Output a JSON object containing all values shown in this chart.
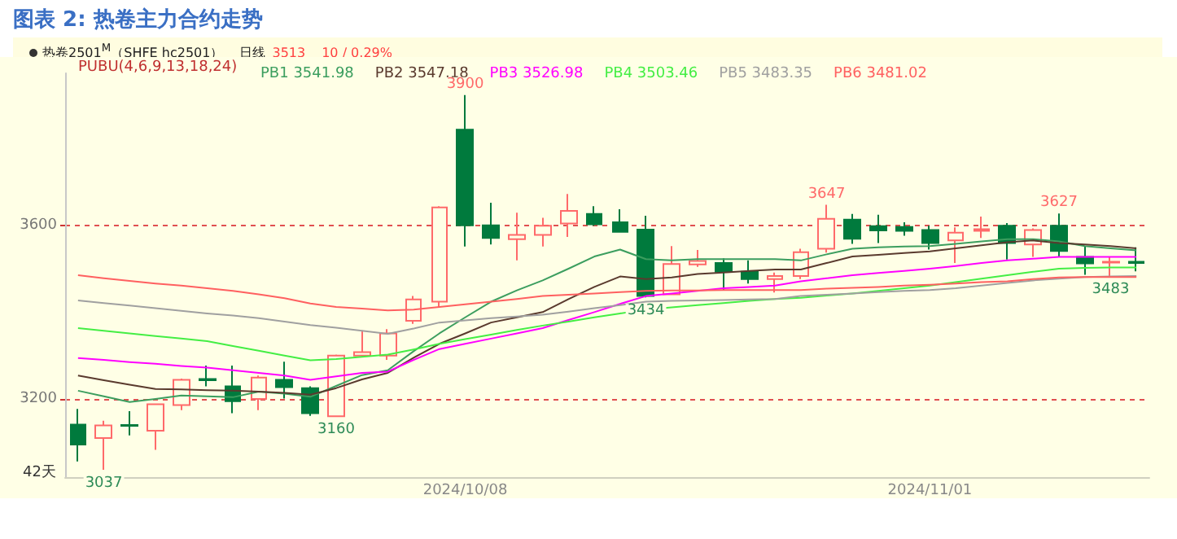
{
  "chart_data": {
    "type": "candlestick",
    "title": "图表 2: 热卷主力合约走势",
    "legend_title": "PUBU(4,6,9,13,18,24)",
    "annotations": [
      "热卷2501$^{M}$（SHFE hc2501）",
      "日线",
      "3513",
      "10 / 0.29%",
      {
        "text": "3900",
        "y": 3900
      },
      {
        "text": "3037",
        "y": 3037
      },
      {
        "text": "3160",
        "y": 3160
      },
      {
        "text": "3434",
        "y": 3434
      },
      {
        "text": "3647",
        "y": 3647
      },
      {
        "text": "3627",
        "y": 3627
      },
      {
        "text": "3483",
        "y": 3483
      },
      "42天"
    ],
    "categories": [
      null,
      null,
      null,
      null,
      null,
      null,
      null,
      null,
      null,
      null,
      null,
      null,
      null,
      null,
      null,
      "2024/10/08",
      null,
      null,
      null,
      null,
      null,
      null,
      null,
      null,
      null,
      null,
      null,
      null,
      null,
      null,
      null,
      null,
      null,
      "2024/11/01",
      null,
      null,
      null,
      null,
      null,
      null,
      null,
      null
    ],
    "ohlc": [
      [
        3141,
        3177,
        3056,
        3095
      ],
      [
        3110,
        3150,
        3037,
        3139
      ],
      [
        3140,
        3172,
        3116,
        3138
      ],
      [
        3127,
        3188,
        3083,
        3188
      ],
      [
        3186,
        3247,
        3174,
        3244
      ],
      [
        3246,
        3277,
        3229,
        3243
      ],
      [
        3229,
        3277,
        3167,
        3195
      ],
      [
        3200,
        3254,
        3174,
        3249
      ],
      [
        3244,
        3286,
        3201,
        3227
      ],
      [
        3225,
        3229,
        3161,
        3167
      ],
      [
        3160,
        3302,
        3160,
        3300
      ],
      [
        3300,
        3358,
        3296,
        3308
      ],
      [
        3300,
        3361,
        3290,
        3351
      ],
      [
        3380,
        3437,
        3373,
        3429
      ],
      [
        3424,
        3644,
        3412,
        3641
      ],
      [
        3820,
        3900,
        3551,
        3600
      ],
      [
        3600,
        3652,
        3556,
        3571
      ],
      [
        3568,
        3629,
        3519,
        3578
      ],
      [
        3578,
        3617,
        3551,
        3599
      ],
      [
        3604,
        3672,
        3573,
        3633
      ],
      [
        3626,
        3644,
        3599,
        3602
      ],
      [
        3607,
        3637,
        3583,
        3585
      ],
      [
        3590,
        3622,
        3434,
        3437
      ],
      [
        3441,
        3552,
        3439,
        3511
      ],
      [
        3510,
        3543,
        3504,
        3518
      ],
      [
        3513,
        3524,
        3451,
        3493
      ],
      [
        3493,
        3519,
        3466,
        3476
      ],
      [
        3476,
        3491,
        3445,
        3483
      ],
      [
        3483,
        3546,
        3476,
        3538
      ],
      [
        3546,
        3647,
        3537,
        3615
      ],
      [
        3613,
        3626,
        3557,
        3569
      ],
      [
        3598,
        3624,
        3559,
        3588
      ],
      [
        3596,
        3607,
        3576,
        3587
      ],
      [
        3589,
        3599,
        3544,
        3559
      ],
      [
        3565,
        3595,
        3513,
        3583
      ],
      [
        3587,
        3620,
        3571,
        3591
      ],
      [
        3599,
        3605,
        3521,
        3559
      ],
      [
        3556,
        3593,
        3527,
        3589
      ],
      [
        3599,
        3627,
        3527,
        3541
      ],
      [
        3527,
        3552,
        3486,
        3512
      ],
      [
        3514,
        3528,
        3483,
        3516
      ],
      [
        3516,
        3549,
        3494,
        3513
      ]
    ],
    "series": [
      {
        "type": "line",
        "name": "PB1 3541.98",
        "color": "#3c9e5f",
        "values": [
          3219,
          3206,
          3193,
          3200,
          3208,
          3206,
          3204,
          3217,
          3212,
          3205,
          3230,
          3255,
          3266,
          3310,
          3351,
          3388,
          3424,
          3450,
          3473,
          3500,
          3528,
          3544,
          3522,
          3519,
          3522,
          3522,
          3522,
          3522,
          3519,
          3533,
          3546,
          3549,
          3551,
          3552,
          3557,
          3563,
          3568,
          3568,
          3563,
          3552,
          3547,
          3542
        ]
      },
      {
        "type": "line",
        "name": "PB2 3547.18",
        "color": "#5a3a2e",
        "values": [
          3254,
          3243,
          3233,
          3223,
          3222,
          3220,
          3219,
          3217,
          3214,
          3210,
          3225,
          3245,
          3260,
          3295,
          3327,
          3351,
          3376,
          3388,
          3400,
          3430,
          3458,
          3482,
          3476,
          3480,
          3488,
          3491,
          3495,
          3498,
          3498,
          3513,
          3528,
          3532,
          3536,
          3540,
          3547,
          3554,
          3561,
          3565,
          3559,
          3556,
          3552,
          3547
        ]
      },
      {
        "type": "line",
        "name": "PB3 3526.98",
        "color": "#ff00ff",
        "values": [
          3294,
          3290,
          3285,
          3281,
          3276,
          3272,
          3266,
          3260,
          3254,
          3244,
          3252,
          3260,
          3263,
          3290,
          3315,
          3327,
          3339,
          3351,
          3363,
          3382,
          3400,
          3419,
          3437,
          3443,
          3449,
          3455,
          3458,
          3461,
          3471,
          3478,
          3485,
          3490,
          3495,
          3500,
          3506,
          3513,
          3519,
          3523,
          3527,
          3527,
          3527,
          3527
        ]
      },
      {
        "type": "line",
        "name": "PB4 3503.46",
        "color": "#44ee44",
        "values": [
          3363,
          3357,
          3351,
          3345,
          3339,
          3333,
          3322,
          3311,
          3300,
          3289,
          3292,
          3297,
          3302,
          3314,
          3327,
          3338,
          3348,
          3359,
          3369,
          3378,
          3388,
          3397,
          3406,
          3411,
          3416,
          3421,
          3426,
          3430,
          3433,
          3438,
          3443,
          3449,
          3455,
          3461,
          3469,
          3477,
          3485,
          3493,
          3500,
          3502,
          3503,
          3503
        ]
      },
      {
        "type": "line",
        "name": "PB5 3483.35",
        "color": "#a0a0a0",
        "values": [
          3427,
          3421,
          3415,
          3409,
          3403,
          3397,
          3392,
          3386,
          3378,
          3370,
          3364,
          3357,
          3350,
          3362,
          3376,
          3381,
          3386,
          3390,
          3394,
          3401,
          3409,
          3416,
          3424,
          3426,
          3427,
          3428,
          3429,
          3430,
          3437,
          3440,
          3443,
          3446,
          3449,
          3451,
          3455,
          3461,
          3467,
          3473,
          3477,
          3481,
          3482,
          3483
        ]
      },
      {
        "type": "line",
        "name": "PB6 3481.02",
        "color": "#ff6060",
        "values": [
          3485,
          3478,
          3472,
          3466,
          3461,
          3455,
          3449,
          3441,
          3432,
          3420,
          3412,
          3408,
          3404,
          3406,
          3412,
          3418,
          3424,
          3430,
          3437,
          3440,
          3443,
          3446,
          3449,
          3450,
          3450,
          3451,
          3451,
          3451,
          3451,
          3454,
          3456,
          3458,
          3461,
          3463,
          3466,
          3469,
          3471,
          3476,
          3480,
          3481,
          3481,
          3481
        ]
      }
    ],
    "ylim": [
      3020,
      3950
    ],
    "yticks": [
      3200,
      3600
    ],
    "grid": "y",
    "legend": "top left",
    "marker": "none"
  }
}
